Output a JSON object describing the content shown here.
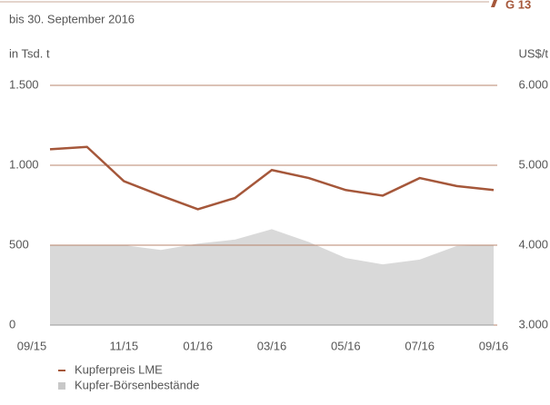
{
  "chart_data": {
    "type": "line",
    "badge": "G 13",
    "subtitle": "bis 30. September 2016",
    "y_label": "in Tsd. t",
    "y2_label": "US$/t",
    "categories": [
      "09/15",
      null,
      "11/15",
      null,
      "01/16",
      null,
      "03/16",
      null,
      "05/16",
      null,
      "07/16",
      null,
      "09/16"
    ],
    "series": [
      {
        "name": "Kupferpreis LME",
        "color": "#a5573a",
        "axis": "y2",
        "kind": "line",
        "values": [
          5200,
          5230,
          4800,
          4620,
          4450,
          4590,
          4940,
          4840,
          4690,
          4620,
          4840,
          4740,
          4690
        ]
      },
      {
        "name": "Kupfer-Börsenbestände",
        "color": "#d9d9d9",
        "kind": "area",
        "values": [
          500,
          500,
          500,
          470,
          510,
          535,
          600,
          520,
          420,
          380,
          410,
          495,
          500
        ]
      }
    ],
    "ylim": [
      0,
      1500
    ],
    "yticks": [
      0,
      500,
      {
        "value": 1000,
        "label": "1.000"
      },
      {
        "value": 1500,
        "label": "1.500"
      }
    ],
    "y2lim": [
      3000,
      6000
    ],
    "y2ticks": [
      {
        "value": 3000,
        "label": "3.000"
      },
      {
        "value": 4000,
        "label": "4.000"
      },
      {
        "value": 5000,
        "label": "5.000"
      },
      {
        "value": 6000,
        "label": "6.000"
      }
    ],
    "grid": true
  }
}
